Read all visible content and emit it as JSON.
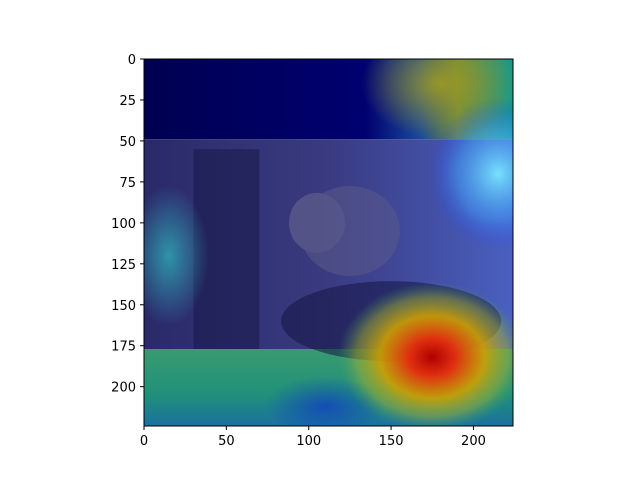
{
  "chart_data": {
    "type": "heatmap",
    "title": "",
    "xlabel": "",
    "ylabel": "",
    "description_layer": "image overlaid with a jet-colormap saliency heatmap",
    "xlim": [
      0,
      224
    ],
    "ylim": [
      224,
      0
    ],
    "x_ticks": [
      0,
      50,
      100,
      150,
      200
    ],
    "y_ticks": [
      0,
      25,
      50,
      75,
      100,
      125,
      150,
      175,
      200
    ],
    "grid": false,
    "colormap": "jet",
    "bands": [
      {
        "y_start": 0,
        "y_end": 49,
        "base": "dark-blue",
        "hotspot_x": 180,
        "hotspot_y": 15,
        "hotspot_level": 0.45
      },
      {
        "y_start": 49,
        "y_end": 177,
        "base": "blue",
        "hotspot_x": 215,
        "hotspot_y": 70,
        "hotspot_level": 0.4
      },
      {
        "y_start": 177,
        "y_end": 224,
        "base": "cyan-green",
        "hotspot_x": 175,
        "hotspot_y": 182,
        "hotspot_level": 1.0
      }
    ],
    "peak": {
      "x": 175,
      "y": 182
    }
  },
  "colors": {
    "axis": "#000000",
    "jet_dark": "#000080",
    "jet_blue": "#0000ff",
    "jet_cyan": "#00ffff",
    "jet_yellow": "#ffff00",
    "jet_red": "#ff0000"
  }
}
